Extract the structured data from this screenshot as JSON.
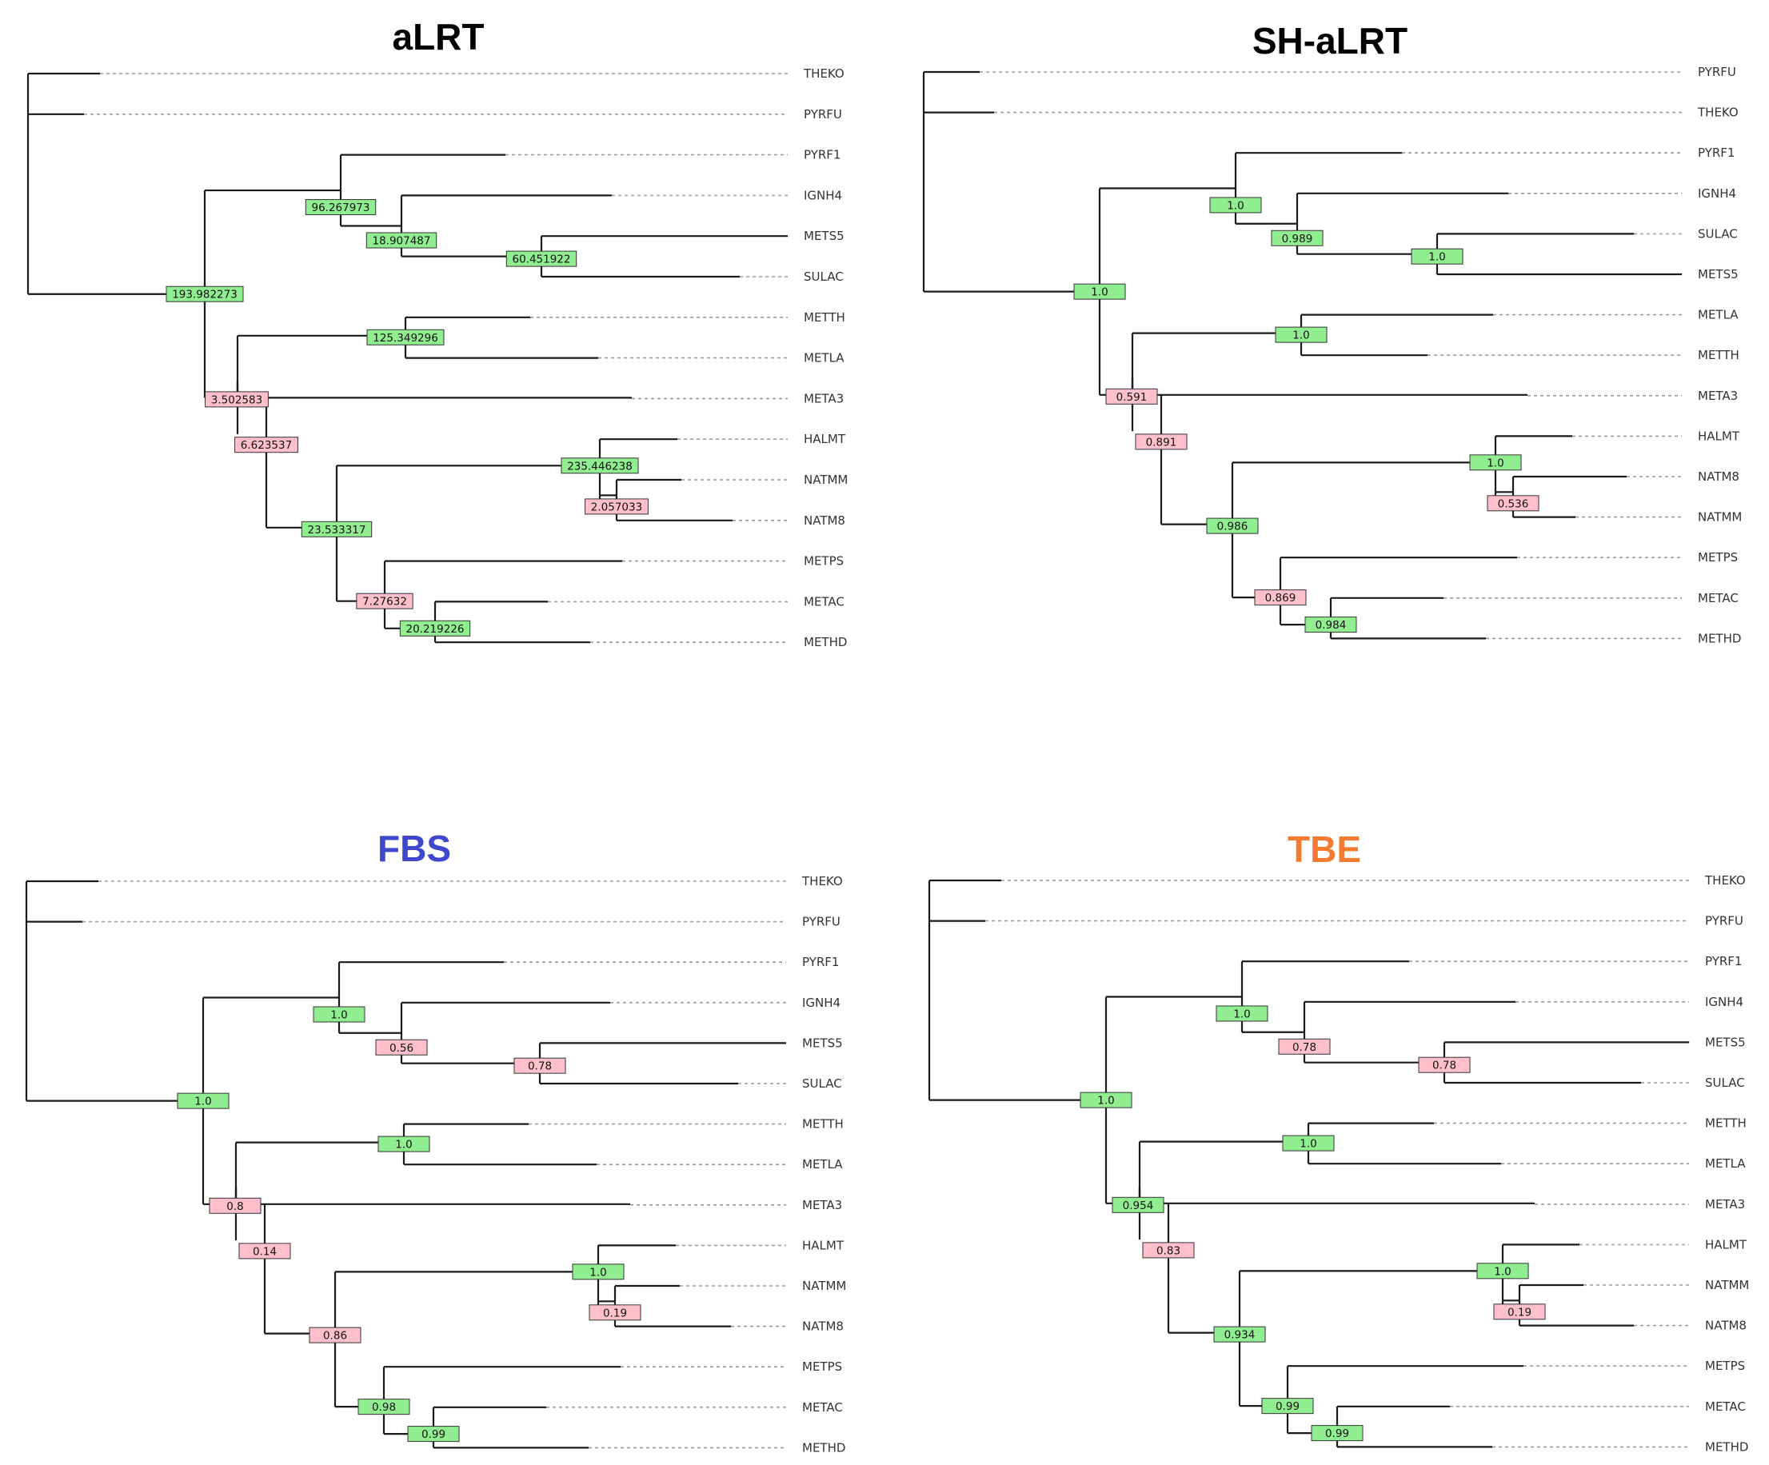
{
  "colors": {
    "title_default": "#000000",
    "title_fbs": "#3f48cc",
    "title_tbe": "#f47b30",
    "support_high": "#90ee90",
    "support_low": "#ffc0cb"
  },
  "panels": [
    {
      "title": "aLRT",
      "title_color": "#000000",
      "leaves": [
        "THEKO",
        "PYRFU",
        "PYRF1",
        "IGNH4",
        "METS5",
        "SULAC",
        "METTH",
        "METLA",
        "META3",
        "HALMT",
        "NATMM",
        "NATM8",
        "METPS",
        "METAC",
        "METHD"
      ],
      "support": {
        "root": "193.982273",
        "pyr_ign": "96.267973",
        "ign_met_sul": "18.907487",
        "mets5_sulac": "60.451922",
        "euryarch": "3.502583",
        "methan": "125.349296",
        "group_a": "6.623537",
        "group_b": "23.533317",
        "halo": "235.446238",
        "natm": "2.057033",
        "metps_grp": "7.27632",
        "metac_hd": "20.219226"
      },
      "support_level": {
        "root": "high",
        "pyr_ign": "high",
        "ign_met_sul": "high",
        "mets5_sulac": "high",
        "euryarch": "low",
        "methan": "high",
        "group_a": "low",
        "group_b": "high",
        "halo": "high",
        "natm": "low",
        "metps_grp": "low",
        "metac_hd": "high"
      }
    },
    {
      "title": "SH-aLRT",
      "title_color": "#000000",
      "leaves": [
        "PYRFU",
        "THEKO",
        "PYRF1",
        "IGNH4",
        "SULAC",
        "METS5",
        "METLA",
        "METTH",
        "META3",
        "HALMT",
        "NATM8",
        "NATMM",
        "METPS",
        "METAC",
        "METHD"
      ],
      "support": {
        "root": "1.0",
        "pyr_ign": "1.0",
        "ign_met_sul": "0.989",
        "mets5_sulac": "1.0",
        "euryarch": "0.591",
        "methan": "1.0",
        "group_a": "0.891",
        "group_b": "0.986",
        "halo": "1.0",
        "natm": "0.536",
        "metps_grp": "0.869",
        "metac_hd": "0.984"
      },
      "support_level": {
        "root": "high",
        "pyr_ign": "high",
        "ign_met_sul": "high",
        "mets5_sulac": "high",
        "euryarch": "low",
        "methan": "high",
        "group_a": "low",
        "group_b": "high",
        "halo": "high",
        "natm": "low",
        "metps_grp": "low",
        "metac_hd": "high"
      }
    },
    {
      "title": "FBS",
      "title_color": "#3f48cc",
      "leaves": [
        "THEKO",
        "PYRFU",
        "PYRF1",
        "IGNH4",
        "METS5",
        "SULAC",
        "METTH",
        "METLA",
        "META3",
        "HALMT",
        "NATMM",
        "NATM8",
        "METPS",
        "METAC",
        "METHD"
      ],
      "support": {
        "root": "1.0",
        "pyr_ign": "1.0",
        "ign_met_sul": "0.56",
        "mets5_sulac": "0.78",
        "euryarch": "0.8",
        "methan": "1.0",
        "group_a": "0.14",
        "group_b": "0.86",
        "halo": "1.0",
        "natm": "0.19",
        "metps_grp": "0.98",
        "metac_hd": "0.99"
      },
      "support_level": {
        "root": "high",
        "pyr_ign": "high",
        "ign_met_sul": "low",
        "mets5_sulac": "low",
        "euryarch": "low",
        "methan": "high",
        "group_a": "low",
        "group_b": "low",
        "halo": "high",
        "natm": "low",
        "metps_grp": "high",
        "metac_hd": "high"
      }
    },
    {
      "title": "TBE",
      "title_color": "#f47b30",
      "leaves": [
        "THEKO",
        "PYRFU",
        "PYRF1",
        "IGNH4",
        "METS5",
        "SULAC",
        "METTH",
        "METLA",
        "META3",
        "HALMT",
        "NATMM",
        "NATM8",
        "METPS",
        "METAC",
        "METHD"
      ],
      "support": {
        "root": "1.0",
        "pyr_ign": "1.0",
        "ign_met_sul": "0.78",
        "mets5_sulac": "0.78",
        "euryarch": "0.954",
        "methan": "1.0",
        "group_a": "0.83",
        "group_b": "0.934",
        "halo": "1.0",
        "natm": "0.19",
        "metps_grp": "0.99",
        "metac_hd": "0.99"
      },
      "support_level": {
        "root": "high",
        "pyr_ign": "high",
        "ign_met_sul": "low",
        "mets5_sulac": "low",
        "euryarch": "high",
        "methan": "high",
        "group_a": "low",
        "group_b": "high",
        "halo": "high",
        "natm": "low",
        "metps_grp": "high",
        "metac_hd": "high"
      }
    }
  ]
}
